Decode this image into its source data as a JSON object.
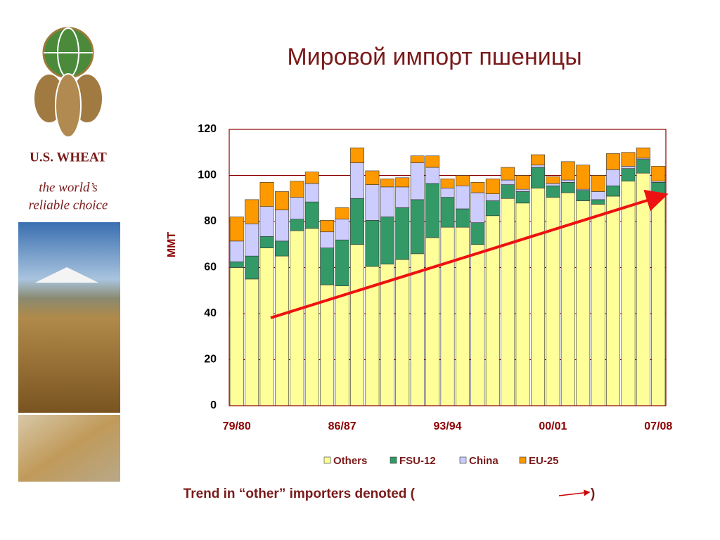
{
  "brand": {
    "name": "U.S. WHEAT",
    "tagline": [
      "the world’s",
      "reliable choice"
    ]
  },
  "chart_data": {
    "type": "stacked_bar",
    "title": "Мировой импорт пшеницы",
    "ylabel": "MMT",
    "categories": [
      "79/80",
      null,
      null,
      null,
      null,
      null,
      null,
      "86/87",
      null,
      null,
      null,
      null,
      null,
      null,
      "93/94",
      null,
      null,
      null,
      null,
      null,
      null,
      "00/01",
      null,
      null,
      null,
      null,
      null,
      null,
      "07/08"
    ],
    "series": [
      {
        "name": "Others",
        "color": "#ffff99",
        "values": [
          60,
          55,
          68.5,
          65,
          76,
          77,
          52.5,
          52,
          70,
          60.5,
          61.5,
          63.5,
          66,
          73,
          77.5,
          77.5,
          70,
          82.5,
          90,
          88,
          94.5,
          90.5,
          92.5,
          89,
          87.5,
          91,
          97.5,
          101,
          92
        ]
      },
      {
        "name": "FSU-12",
        "color": "#339966",
        "values": [
          2.5,
          10,
          5,
          6.5,
          5,
          11.5,
          16,
          20,
          20,
          20,
          20.5,
          22.5,
          23.5,
          23.5,
          13,
          8,
          9.5,
          6.5,
          6,
          5,
          9,
          5,
          4.5,
          4.5,
          2,
          4.5,
          5.5,
          6,
          5
        ]
      },
      {
        "name": "China",
        "color": "#ccccff",
        "values": [
          9,
          14,
          13,
          13.5,
          9.5,
          8,
          7,
          9,
          15.5,
          15.5,
          13,
          9,
          16,
          7,
          4,
          10,
          13,
          3,
          2,
          1,
          1,
          1,
          1,
          0.5,
          3.5,
          7,
          1,
          0.5,
          0.5
        ]
      },
      {
        "name": "EU-25",
        "color": "#ff9900",
        "values": [
          10.5,
          10.5,
          10.5,
          8,
          7,
          5,
          5,
          5,
          6.5,
          6,
          3.5,
          4,
          3,
          5,
          4,
          4.5,
          4.5,
          6.5,
          5.5,
          6,
          4.5,
          3,
          8,
          10.5,
          7,
          7,
          6,
          4.5,
          6.5
        ]
      }
    ],
    "ylim": [
      0,
      120
    ],
    "yticks": [
      0,
      20,
      40,
      60,
      80,
      100,
      120
    ],
    "grid": true,
    "annotation": [
      "Trend in “other” importers denoted (",
      ")"
    ]
  }
}
